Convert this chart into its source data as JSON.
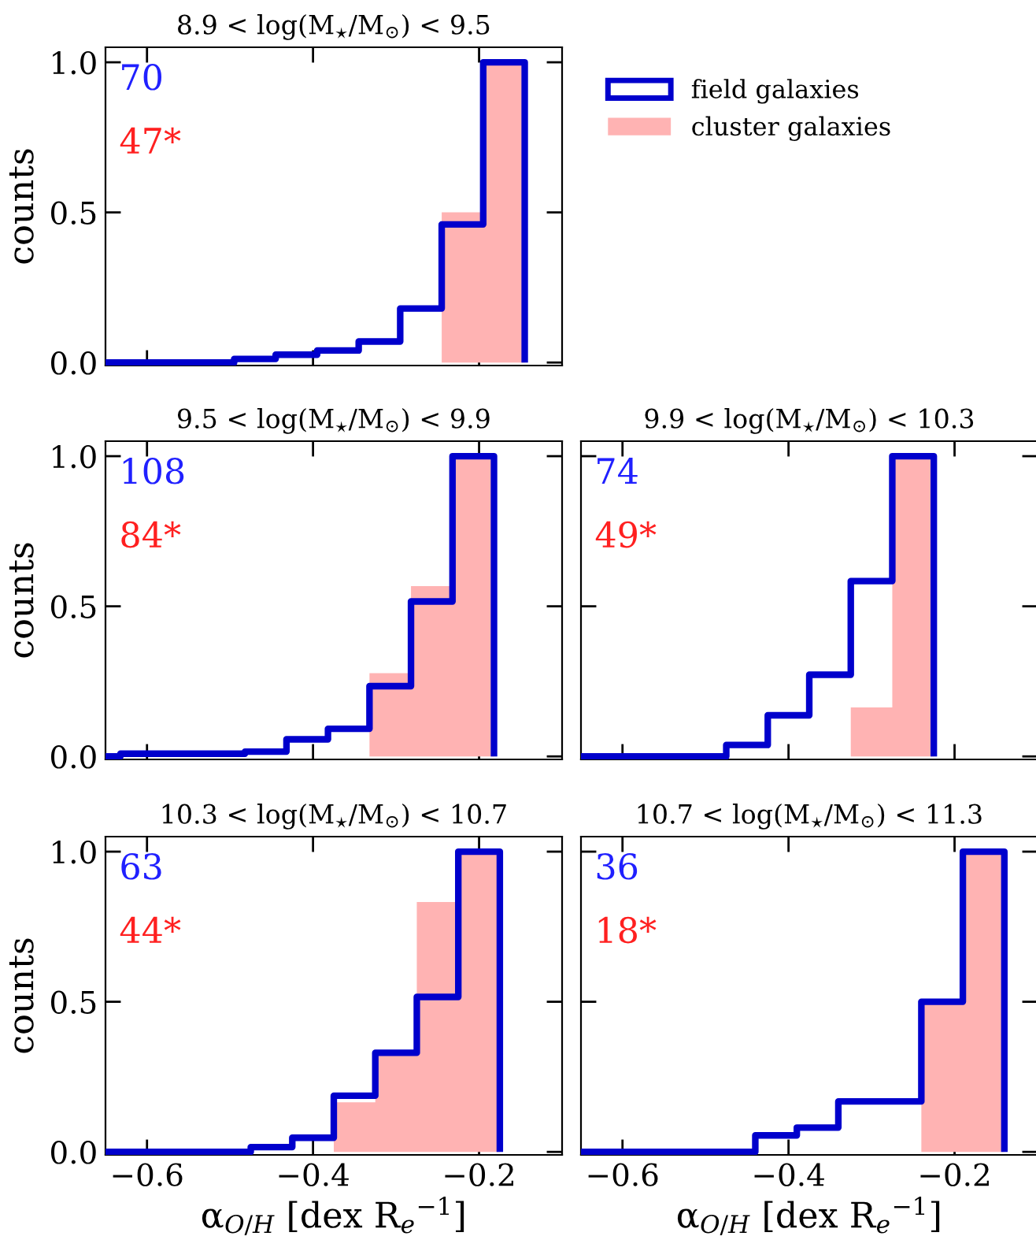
{
  "chart_data": [
    {
      "type": "histogram",
      "title": "8.9 < log(M$_{⋆}$/M$_{⊙}$) < 9.5",
      "ylabel": "counts",
      "legend": "right",
      "tick_labels": "y",
      "bins": [
        -0.645,
        -0.595,
        -0.545,
        -0.495,
        -0.445,
        -0.395,
        -0.345,
        -0.295,
        -0.245,
        -0.195,
        -0.145
      ],
      "series": [
        {
          "name": "field galaxies",
          "type": "line",
          "color": "#0000cc",
          "x": [
            -0.65,
            -0.495,
            -0.495,
            -0.445,
            -0.445,
            -0.395,
            -0.395,
            -0.345,
            -0.345,
            -0.295,
            -0.295,
            -0.245,
            -0.245,
            -0.195,
            -0.195,
            -0.145,
            -0.145
          ],
          "values": [
            0,
            0,
            0.012,
            0.012,
            0.026,
            0.026,
            0.04,
            0.04,
            0.07,
            0.07,
            0.18,
            0.18,
            0.46,
            0.46,
            1.0,
            1.0,
            0
          ]
        },
        {
          "name": "cluster galaxies",
          "color": "#ffb3b3",
          "values": [
            0,
            0,
            0,
            0,
            0,
            0,
            0,
            0,
            0.5,
            1.0
          ]
        }
      ],
      "annotations": [
        "70",
        "47*"
      ],
      "xlim": [
        -0.65,
        -0.1
      ],
      "ylim": [
        -0.01,
        1.05
      ],
      "xticks": [
        {
          "value": -0.6,
          "label": null
        },
        {
          "value": -0.4,
          "label": null
        },
        {
          "value": -0.2,
          "label": null
        }
      ],
      "yticks": [
        {
          "value": 0,
          "label": "0.0"
        },
        {
          "value": 0.5,
          "label": "0.5"
        },
        {
          "value": 1,
          "label": "1.0"
        }
      ]
    },
    {
      "type": "histogram",
      "title": "9.5 < log(M$_{⋆}$/M$_{⊙}$) < 9.9",
      "ylabel": "counts",
      "tick_labels": "y",
      "bins": [
        -0.632,
        -0.582,
        -0.532,
        -0.482,
        -0.432,
        -0.382,
        -0.332,
        -0.282,
        -0.232,
        -0.182
      ],
      "series": [
        {
          "type": "line",
          "color": "#0000cc",
          "x": [
            -0.65,
            -0.632,
            -0.632,
            -0.482,
            -0.482,
            -0.432,
            -0.432,
            -0.382,
            -0.382,
            -0.332,
            -0.332,
            -0.282,
            -0.282,
            -0.232,
            -0.232,
            -0.182,
            -0.182
          ],
          "values": [
            0,
            0,
            0.009,
            0.009,
            0.016,
            0.016,
            0.057,
            0.057,
            0.092,
            0.092,
            0.234,
            0.234,
            0.516,
            0.516,
            1.0,
            1.0,
            0
          ]
        },
        {
          "color": "#ffb3b3",
          "values": [
            0,
            0,
            0,
            0,
            0,
            0,
            0.277,
            0.567,
            1.0
          ]
        }
      ],
      "annotations": [
        "108",
        "84*"
      ],
      "xlim": [
        -0.65,
        -0.1
      ],
      "ylim": [
        -0.01,
        1.05
      ],
      "xticks": [
        {
          "value": -0.6,
          "label": null
        },
        {
          "value": -0.4,
          "label": null
        },
        {
          "value": -0.2,
          "label": null
        }
      ],
      "yticks": [
        {
          "value": 0,
          "label": "0.0"
        },
        {
          "value": 0.5,
          "label": "0.5"
        },
        {
          "value": 1,
          "label": "1.0"
        }
      ]
    },
    {
      "type": "histogram",
      "title": "9.9 < log(M$_{⋆}$/M$_{⊙}$) < 10.3",
      "tick_labels": false,
      "bins": [
        -0.625,
        -0.575,
        -0.525,
        -0.475,
        -0.425,
        -0.375,
        -0.325,
        -0.275,
        -0.225
      ],
      "series": [
        {
          "type": "line",
          "color": "#0000cc",
          "x": [
            -0.65,
            -0.475,
            -0.475,
            -0.425,
            -0.425,
            -0.375,
            -0.375,
            -0.325,
            -0.325,
            -0.275,
            -0.275,
            -0.225,
            -0.225
          ],
          "values": [
            0,
            0,
            0.038,
            0.038,
            0.137,
            0.137,
            0.272,
            0.272,
            0.584,
            0.584,
            1.0,
            1.0,
            0
          ]
        },
        {
          "color": "#ffb3b3",
          "values": [
            0,
            0,
            0,
            0,
            0,
            0,
            0.163,
            1.0
          ]
        }
      ],
      "annotations": [
        "74",
        "49*"
      ],
      "xlim": [
        -0.65,
        -0.1
      ],
      "ylim": [
        -0.01,
        1.05
      ],
      "xticks": [
        {
          "value": -0.6,
          "label": null
        },
        {
          "value": -0.4,
          "label": null
        },
        {
          "value": -0.2,
          "label": null
        }
      ],
      "yticks": [
        {
          "value": 0,
          "label": null
        },
        {
          "value": 0.5,
          "label": null
        },
        {
          "value": 1,
          "label": null
        }
      ]
    },
    {
      "type": "histogram",
      "title": "10.3 < log(M$_{⋆}$/M$_{⊙}$) < 10.7",
      "ylabel": "counts",
      "xlabel": "α$_{O/H}$ [dex R$_{e}$$^{−1}$]",
      "bins": [
        -0.625,
        -0.575,
        -0.525,
        -0.475,
        -0.425,
        -0.375,
        -0.325,
        -0.275,
        -0.225,
        -0.175
      ],
      "series": [
        {
          "type": "line",
          "color": "#0000cc",
          "x": [
            -0.65,
            -0.475,
            -0.475,
            -0.425,
            -0.425,
            -0.375,
            -0.375,
            -0.325,
            -0.325,
            -0.275,
            -0.275,
            -0.225,
            -0.225,
            -0.175,
            -0.175
          ],
          "values": [
            0,
            0,
            0.016,
            0.016,
            0.047,
            0.047,
            0.187,
            0.187,
            0.33,
            0.33,
            0.516,
            0.516,
            1.0,
            1.0,
            0
          ]
        },
        {
          "color": "#ffb3b3",
          "values": [
            0,
            0,
            0,
            0,
            0,
            0.165,
            0.33,
            0.832,
            1.0
          ]
        }
      ],
      "annotations": [
        "63",
        "44*"
      ],
      "xlim": [
        -0.65,
        -0.1
      ],
      "ylim": [
        -0.01,
        1.05
      ],
      "xticks": [
        {
          "value": -0.6,
          "label": "−0.6"
        },
        {
          "value": -0.4,
          "label": "−0.4"
        },
        {
          "value": -0.2,
          "label": "−0.2"
        }
      ],
      "yticks": [
        {
          "value": 0,
          "label": "0.0"
        },
        {
          "value": 0.5,
          "label": "0.5"
        },
        {
          "value": 1,
          "label": "1.0"
        }
      ]
    },
    {
      "type": "histogram",
      "title": "10.7 < log(M$_{⋆}$/M$_{⊙}$) < 11.3",
      "xlabel": "α$_{O/H}$ [dex R$_{e}$$^{−1}$]",
      "tick_labels": "x",
      "bins": [
        -0.64,
        -0.59,
        -0.54,
        -0.49,
        -0.44,
        -0.39,
        -0.34,
        -0.29,
        -0.24,
        -0.19,
        -0.14
      ],
      "series": [
        {
          "type": "line",
          "color": "#0000cc",
          "x": [
            -0.65,
            -0.44,
            -0.44,
            -0.39,
            -0.39,
            -0.34,
            -0.34,
            -0.24,
            -0.24,
            -0.19,
            -0.19,
            -0.14,
            -0.14
          ],
          "values": [
            0,
            0,
            0.055,
            0.055,
            0.081,
            0.081,
            0.168,
            0.168,
            0.5,
            0.5,
            1.0,
            1.0,
            0
          ]
        },
        {
          "color": "#ffb3b3",
          "values": [
            0,
            0,
            0,
            0,
            0,
            0,
            0,
            0,
            0.5,
            1.0
          ]
        }
      ],
      "annotations": [
        "36",
        "18*"
      ],
      "xlim": [
        -0.65,
        -0.1
      ],
      "ylim": [
        -0.01,
        1.05
      ],
      "xticks": [
        {
          "value": -0.6,
          "label": "−0.6"
        },
        {
          "value": -0.4,
          "label": "−0.4"
        },
        {
          "value": -0.2,
          "label": "−0.2"
        }
      ],
      "yticks": [
        {
          "value": 0,
          "label": null
        },
        {
          "value": 0.5,
          "label": null
        },
        {
          "value": 1,
          "label": null
        }
      ]
    }
  ]
}
